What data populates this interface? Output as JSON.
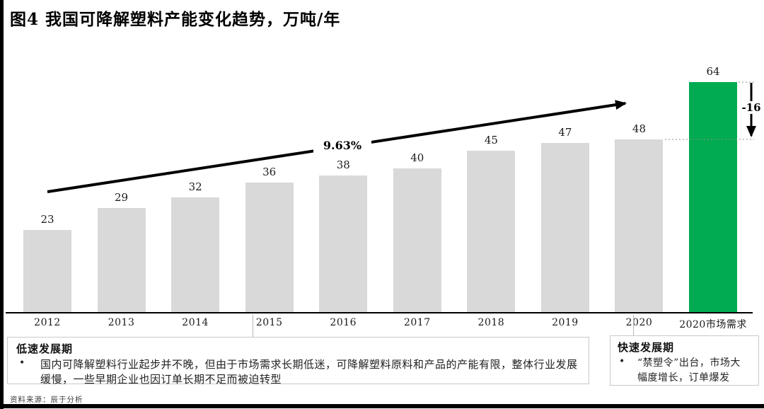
{
  "title": "图4 我国可降解塑料产能变化趋势，万吨/年",
  "chart_data": {
    "type": "bar",
    "title": "图4 我国可降解塑料产能变化趋势，万吨/年",
    "unit_label": "万吨/年",
    "categories": [
      "2012",
      "2013",
      "2014",
      "2015",
      "2016",
      "2017",
      "2018",
      "2019",
      "2020",
      "2020市场需求"
    ],
    "values": [
      23,
      29,
      32,
      36,
      38,
      40,
      45,
      47,
      48,
      64
    ],
    "highlight_index": 9,
    "bar_color_default": "#d9d9d9",
    "bar_color_highlight": "#00ab51",
    "annotations": {
      "growth_rate": "9.63%",
      "gap": "-16"
    },
    "ylim": [
      0,
      70
    ],
    "grid": false,
    "legend": false
  },
  "bullet_glyph": "•",
  "notes": [
    {
      "title": "低速发展期",
      "bullet": "国内可降解塑料行业起步并不晚，但由于市场需求长期低迷，可降解塑料原料和产品的产能有限，整体行业发展缓慢，一些早期企业也因订单长期不足而被迫转型"
    },
    {
      "title": "快速发展期",
      "bullet": "“禁塑令”出台，市场大幅度增长，订单爆发"
    }
  ],
  "source": "资料来源：辰于分析"
}
